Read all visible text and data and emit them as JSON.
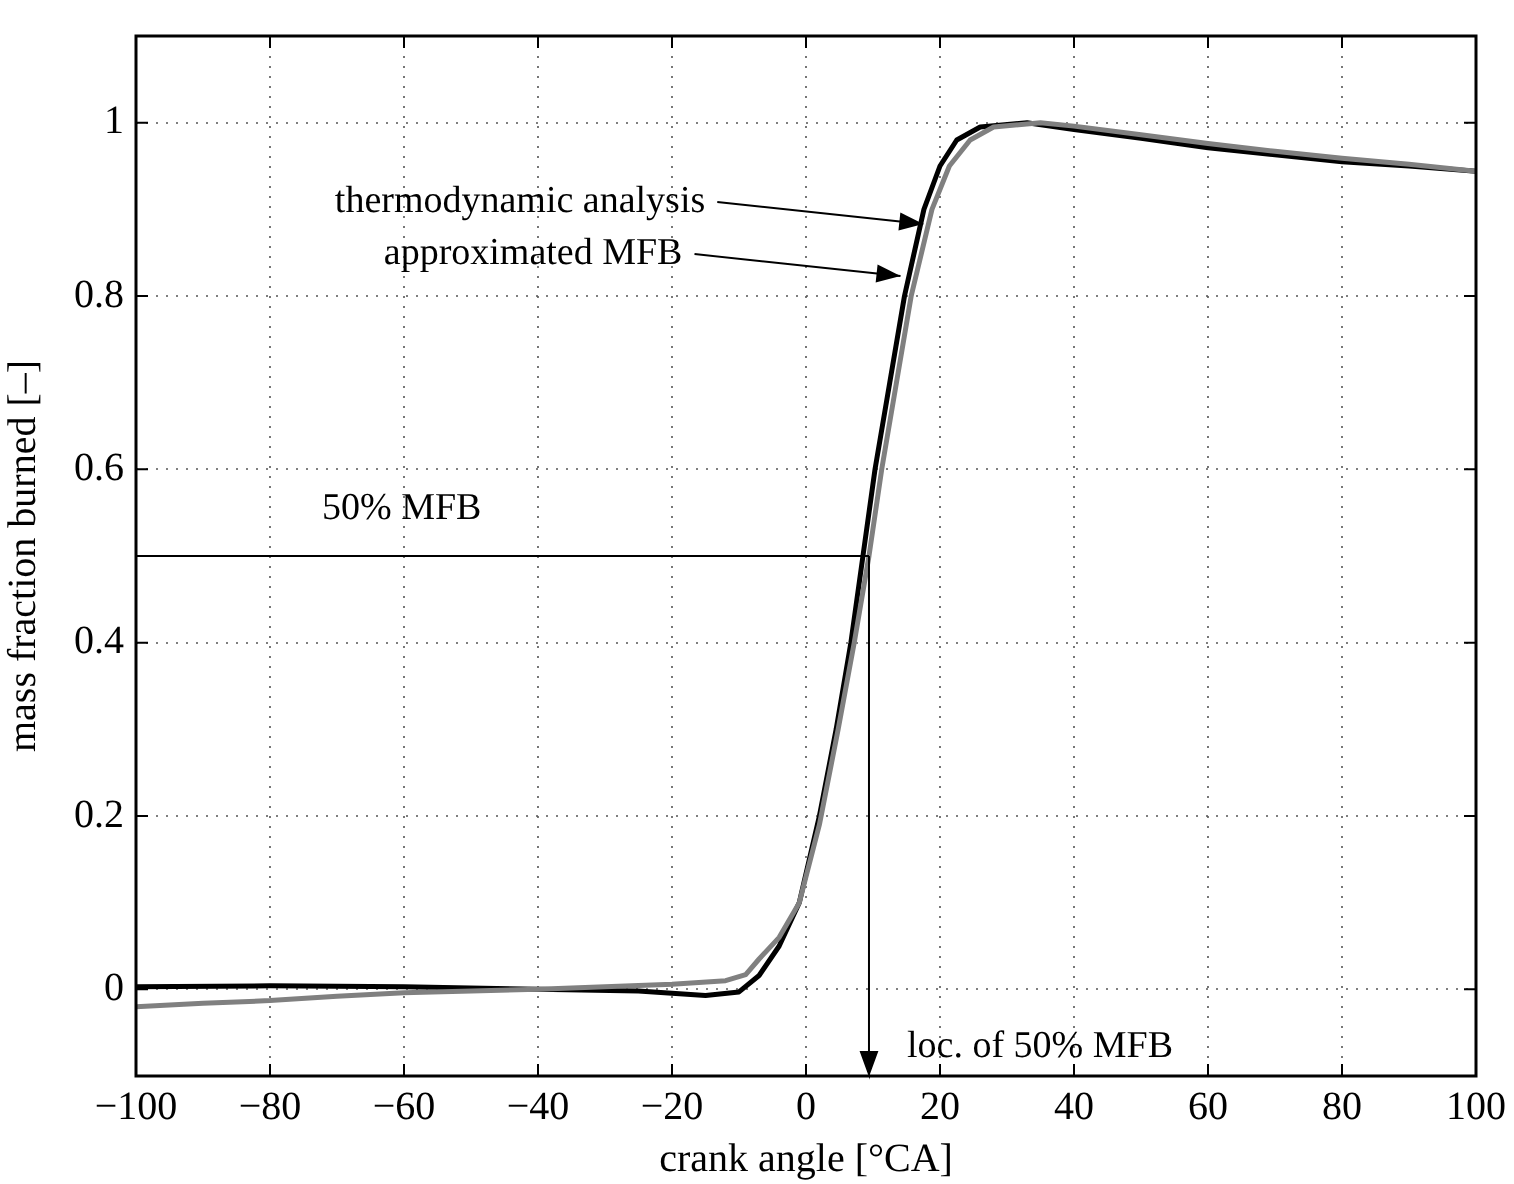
{
  "chart_data": {
    "type": "line",
    "xlabel": "crank angle [°CA]",
    "ylabel": "mass fraction burned [–]",
    "xlim": [
      -100,
      100
    ],
    "xticks": [
      -100,
      -80,
      -60,
      -40,
      -20,
      0,
      20,
      40,
      60,
      80,
      100
    ],
    "ylim": [
      -0.1,
      1.1
    ],
    "yticks": [
      0,
      0.2,
      0.4,
      0.6,
      0.8,
      1
    ],
    "grid": true,
    "legend": false,
    "marker": "none",
    "line_style": "solid",
    "series": [
      {
        "color": "#000000",
        "x": [
          -100,
          -80,
          -60,
          -40,
          -25,
          -15,
          -10,
          -7,
          -4,
          -1,
          2,
          4.5,
          6.7,
          8.5,
          10.3,
          12.5,
          14.7,
          17.6,
          20,
          22.5,
          26,
          33,
          40,
          50,
          60,
          70,
          80,
          90,
          100
        ],
        "values": [
          0.003,
          0.004,
          0.003,
          0,
          -0.002,
          -0.007,
          -0.003,
          0.016,
          0.05,
          0.1,
          0.2,
          0.3,
          0.4,
          0.5,
          0.6,
          0.7,
          0.8,
          0.9,
          0.95,
          0.98,
          0.995,
          1,
          0.992,
          0.982,
          0.971,
          0.963,
          0.955,
          0.95,
          0.944
        ]
      },
      {
        "color": "#808080",
        "x": [
          -100,
          -90,
          -80,
          -70,
          -60,
          -40,
          -20,
          -12,
          -9,
          -7,
          -4,
          -1,
          2,
          4.8,
          7.2,
          9.4,
          11.3,
          13.5,
          15.7,
          18.8,
          21.4,
          24.5,
          28,
          35,
          40,
          50,
          60,
          70,
          80,
          90,
          100
        ],
        "values": [
          -0.02,
          -0.016,
          -0.013,
          -0.008,
          -0.004,
          0,
          0.006,
          0.01,
          0.017,
          0.035,
          0.06,
          0.1,
          0.19,
          0.3,
          0.4,
          0.5,
          0.6,
          0.7,
          0.8,
          0.9,
          0.95,
          0.98,
          0.995,
          1,
          0.996,
          0.986,
          0.976,
          0.967,
          0.959,
          0.952,
          0.944
        ]
      }
    ],
    "ref_lines": [
      {
        "axis": "y",
        "value": 0.5,
        "label": "50% MFB",
        "color": "#000000"
      },
      {
        "axis": "x",
        "value": 9.4,
        "label": "loc. of 50% MFB",
        "color": "#000000"
      }
    ],
    "annotations": [
      {
        "text": "thermodynamic analysis",
        "x": 18.1,
        "y": 0.883
      },
      {
        "text": "approximated MFB",
        "x": 14.7,
        "y": 0.823
      }
    ]
  }
}
